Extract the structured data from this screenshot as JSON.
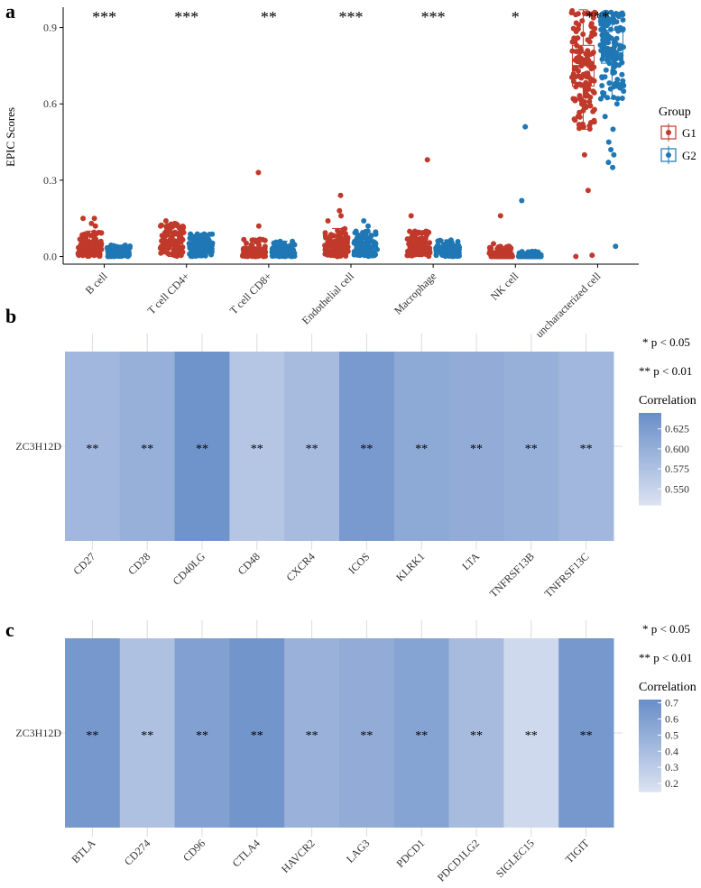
{
  "colors": {
    "g1": "#c0392b",
    "g2": "#1f77b4",
    "heat_low": "#dde3f2",
    "heat_high": "#6a8fc9",
    "grid": "#dcdcdc"
  },
  "panel_a": {
    "letter": "a",
    "chart_data": {
      "type": "box",
      "ylabel": "EPIC Scores",
      "ylim": [
        -0.03,
        0.98
      ],
      "yticks": [
        "0.0",
        "0.3",
        "0.6",
        "0.9"
      ],
      "ytick_values": [
        0.0,
        0.3,
        0.6,
        0.9
      ],
      "categories": [
        "B cell",
        "T cell CD4+",
        "T cell CD8+",
        "Endothelial cell",
        "Macrophage",
        "NK cell",
        "uncharacterized cell"
      ],
      "significance": [
        "***",
        "***",
        "**",
        "***",
        "***",
        "*",
        "***"
      ],
      "legend_title": "Group",
      "series": [
        {
          "name": "G1",
          "color": "#c0392b",
          "summary": [
            {
              "min": 0.0,
              "q1": 0.01,
              "median": 0.03,
              "q3": 0.05,
              "max": 0.1,
              "outliers": [
                0.12,
                0.13,
                0.15,
                0.15
              ]
            },
            {
              "min": 0.0,
              "q1": 0.03,
              "median": 0.05,
              "q3": 0.08,
              "max": 0.13,
              "outliers": [
                0.14
              ]
            },
            {
              "min": 0.0,
              "q1": 0.005,
              "median": 0.015,
              "q3": 0.03,
              "max": 0.07,
              "outliers": [
                0.12,
                0.33
              ]
            },
            {
              "min": 0.0,
              "q1": 0.02,
              "median": 0.04,
              "q3": 0.06,
              "max": 0.11,
              "outliers": [
                0.14,
                0.16,
                0.18,
                0.24
              ]
            },
            {
              "min": 0.0,
              "q1": 0.015,
              "median": 0.035,
              "q3": 0.06,
              "max": 0.1,
              "outliers": [
                0.16,
                0.38
              ]
            },
            {
              "min": 0.0,
              "q1": 0.0,
              "median": 0.005,
              "q3": 0.015,
              "max": 0.04,
              "outliers": [
                0.05,
                0.16
              ]
            },
            {
              "min": 0.5,
              "q1": 0.67,
              "median": 0.75,
              "q3": 0.83,
              "max": 0.97,
              "outliers": [
                0.0,
                0.005,
                0.26,
                0.4
              ]
            }
          ]
        },
        {
          "name": "G2",
          "color": "#1f77b4",
          "summary": [
            {
              "min": 0.0,
              "q1": 0.005,
              "median": 0.015,
              "q3": 0.025,
              "max": 0.045,
              "outliers": []
            },
            {
              "min": 0.0,
              "q1": 0.025,
              "median": 0.04,
              "q3": 0.055,
              "max": 0.09,
              "outliers": []
            },
            {
              "min": 0.0,
              "q1": 0.005,
              "median": 0.015,
              "q3": 0.03,
              "max": 0.06,
              "outliers": []
            },
            {
              "min": 0.0,
              "q1": 0.02,
              "median": 0.035,
              "q3": 0.06,
              "max": 0.1,
              "outliers": [
                0.12,
                0.14
              ]
            },
            {
              "min": 0.0,
              "q1": 0.01,
              "median": 0.02,
              "q3": 0.035,
              "max": 0.065,
              "outliers": []
            },
            {
              "min": 0.0,
              "q1": 0.0,
              "median": 0.002,
              "q3": 0.008,
              "max": 0.02,
              "outliers": [
                0.22,
                0.51
              ]
            },
            {
              "min": 0.62,
              "q1": 0.76,
              "median": 0.8,
              "q3": 0.89,
              "max": 0.96,
              "outliers": [
                0.35,
                0.37,
                0.4,
                0.42,
                0.45,
                0.5,
                0.55,
                0.6,
                0.04
              ]
            }
          ]
        }
      ]
    }
  },
  "panel_b": {
    "letter": "b",
    "chart_data": {
      "type": "heatmap",
      "row_label": "ZC3H12D",
      "columns": [
        "CD27",
        "CD28",
        "CD40LG",
        "CD48",
        "CXCR4",
        "ICOS",
        "KLRK1",
        "LTA",
        "TNFRSF13B",
        "TNFRSF13C"
      ],
      "values": [
        0.59,
        0.6,
        0.64,
        0.57,
        0.585,
        0.63,
        0.61,
        0.605,
        0.6,
        0.59
      ],
      "stars": [
        "**",
        "**",
        "**",
        "**",
        "**",
        "**",
        "**",
        "**",
        "**",
        "**"
      ],
      "color_range": [
        0.53,
        0.645
      ],
      "legend_title": "Correlation",
      "legend_ticks": [
        "0.625",
        "0.600",
        "0.575",
        "0.550"
      ],
      "legend_tick_values": [
        0.625,
        0.6,
        0.575,
        0.55
      ],
      "notes": [
        "* p < 0.05",
        "** p < 0.01"
      ]
    }
  },
  "panel_c": {
    "letter": "c",
    "chart_data": {
      "type": "heatmap",
      "row_label": "ZC3H12D",
      "columns": [
        "BTLA",
        "CD274",
        "CD96",
        "CTLA4",
        "HAVCR2",
        "LAG3",
        "PDCD1",
        "PDCD1LG2",
        "SIGLEC15",
        "TIGIT"
      ],
      "values": [
        0.66,
        0.38,
        0.6,
        0.68,
        0.48,
        0.52,
        0.58,
        0.42,
        0.22,
        0.66
      ],
      "stars": [
        "**",
        "**",
        "**",
        "**",
        "**",
        "**",
        "**",
        "**",
        "**",
        "**"
      ],
      "color_range": [
        0.15,
        0.72
      ],
      "legend_title": "Correlation",
      "legend_ticks": [
        "0.7",
        "0.6",
        "0.5",
        "0.4",
        "0.3",
        "0.2"
      ],
      "legend_tick_values": [
        0.7,
        0.6,
        0.5,
        0.4,
        0.3,
        0.2
      ],
      "notes": [
        "* p < 0.05",
        "** p < 0.01"
      ]
    }
  }
}
